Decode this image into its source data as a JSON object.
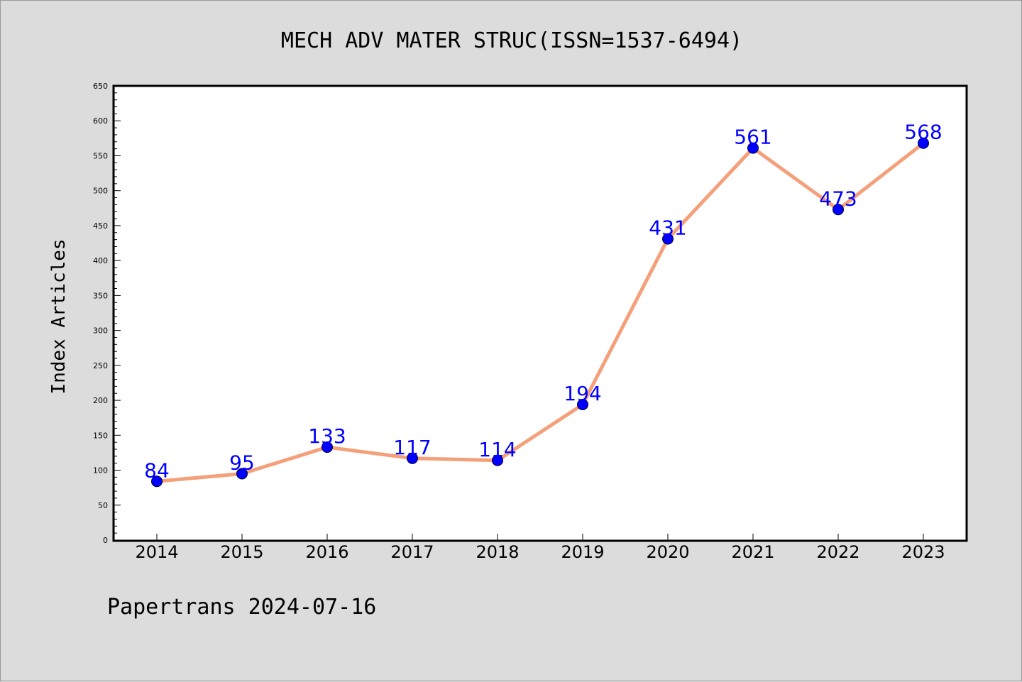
{
  "footer_text": "Papertrans 2024-07-16",
  "chart_data": {
    "type": "line",
    "title": "MECH ADV MATER STRUC(ISSN=1537-6494)",
    "xlabel": "",
    "ylabel": "Index Articles",
    "categories": [
      "2014",
      "2015",
      "2016",
      "2017",
      "2018",
      "2019",
      "2020",
      "2021",
      "2022",
      "2023"
    ],
    "series": [
      {
        "values": [
          84,
          95,
          133,
          117,
          114,
          194,
          431,
          561,
          473,
          568
        ]
      }
    ],
    "ylim": [
      0,
      650
    ],
    "y_major_ticks": [
      0,
      50,
      100,
      150,
      200,
      250,
      300,
      350,
      400,
      450,
      500,
      550,
      600,
      650
    ],
    "grid": false,
    "legend": "none",
    "colors": {
      "line": "#f4a07a",
      "marker": "#0000ff",
      "marker_edge": "#000033",
      "data_label": "#0000ff",
      "plot_bg": "#ffffff",
      "figure_bg": "#dcdcdc"
    }
  }
}
